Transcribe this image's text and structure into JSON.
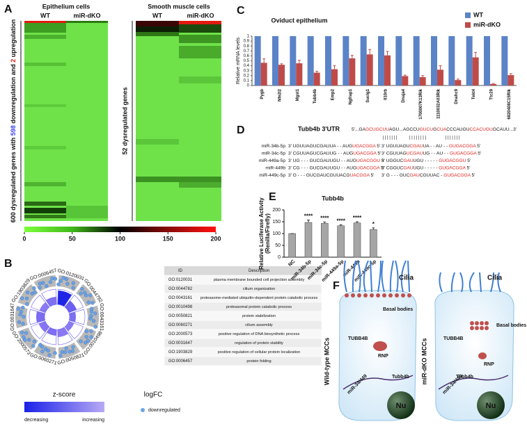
{
  "panel_labels": [
    "A",
    "B",
    "C",
    "D",
    "E",
    "F"
  ],
  "panel_a": {
    "left_title": "Epithelium cells",
    "right_title": "Smooth muscle cells",
    "columns": [
      "WT",
      "miR-dKO"
    ],
    "left_axis_label": [
      {
        "text": "600 dysregulated genes with "
      },
      {
        "text": "598",
        "color": "#3a3ff2"
      },
      {
        "text": " downregulation and "
      },
      {
        "text": "2",
        "color": "#e0201b"
      },
      {
        "text": " upregulation"
      }
    ],
    "right_axis_label": "52 dysregulated genes",
    "colorbar": {
      "lim": [
        0,
        200
      ],
      "ticks": [
        0,
        50,
        100,
        150,
        200
      ]
    }
  },
  "panel_b": {
    "go_labels": [
      "GO:0120031",
      "GO:0044782",
      "GO:0043161",
      "GO:0010498",
      "GO:0050821",
      "GO:0060271",
      "GO:2000573",
      "GO:0031647",
      "GO:1903829",
      "GO:0006457"
    ],
    "table": {
      "header": [
        "ID",
        "Description"
      ],
      "rows": [
        [
          "GO:0120031",
          "plasma membrane bounded cell projection assembly"
        ],
        [
          "GO:0044782",
          "cilium organization"
        ],
        [
          "GO:0043161",
          "proteasome-mediated ubiquitin-dependent protein catabolic process"
        ],
        [
          "GO:0010498",
          "proteasomal protein catabolic process"
        ],
        [
          "GO:0050821",
          "protein stabilization"
        ],
        [
          "GO:0060271",
          "cilium assembly"
        ],
        [
          "GO:2000573",
          "positive regulation of DNA biosynthetic process"
        ],
        [
          "GO:0031647",
          "regulation of protein stability"
        ],
        [
          "GO:1903829",
          "positive regulation of cellular protein localization"
        ],
        [
          "GO:0006457",
          "protein folding"
        ]
      ]
    },
    "zscore_title": "z-score",
    "zscore_labels": [
      "decreasing",
      "increasing"
    ],
    "logfc_title": "logFC",
    "logfc_label": "downregulated"
  },
  "panel_c": {
    "type": "bar",
    "title": "Oviduct epithelium",
    "ylabel": "Relative mRNA levels",
    "categories": [
      "Pygb",
      "Nfe2l2",
      "Mgst1",
      "Tubb4b",
      "Emp2",
      "Ngfrap1",
      "Suclg1",
      "Il10rb",
      "Dnaja4",
      "1700007K13Rik",
      "1110032A03Rik",
      "Dnahc9",
      "Tekt4",
      "Ttc29",
      "6820408C15Rik"
    ],
    "series": [
      {
        "name": "WT",
        "color": "#5b83c8",
        "values": [
          1,
          1,
          1,
          1,
          1,
          1,
          1,
          1,
          1,
          1,
          1,
          1,
          1,
          1,
          1
        ]
      },
      {
        "name": "miR-dKO",
        "color": "#bf4b48",
        "values": [
          0.46,
          0.42,
          0.45,
          0.26,
          0.33,
          0.55,
          0.63,
          0.61,
          0.19,
          0.17,
          0.32,
          0.11,
          0.57,
          0.03,
          0.21
        ],
        "errors": [
          0.08,
          0.02,
          0.06,
          0.03,
          0.07,
          0.06,
          0.1,
          0.08,
          0.02,
          0.03,
          0.08,
          0.02,
          0.1,
          0.01,
          0.03
        ]
      }
    ],
    "ylim": [
      0,
      1
    ],
    "yticks": [
      0,
      0.1,
      0.2,
      0.3,
      0.4,
      0.5,
      0.6,
      0.7,
      0.8,
      0.9,
      1
    ]
  },
  "panel_d": {
    "title": "Tubb4b 3'UTR",
    "utr": [
      {
        "text": "5'...GA"
      },
      {
        "text": "GCUGCUU",
        "color": "#e0201b"
      },
      {
        "text": "AGU...AGCCU"
      },
      {
        "text": "GUCU",
        "color": "#e0201b"
      },
      {
        "text": "G"
      },
      {
        "text": "CUA",
        "color": "#e0201b"
      },
      {
        "text": "CCCAUGU"
      },
      {
        "text": "CCACUGU",
        "color": "#e0201b"
      },
      {
        "text": "GCAUU...3'"
      }
    ],
    "pairing": [
      "| | | | | | |",
      "| | | |  | | | |",
      "| | | | | | |"
    ],
    "rows": [
      {
        "name": "miR-34b-5p",
        "left": [
          {
            "text": "3' UGUUAGUCGAUUA - - AUG"
          },
          {
            "text": "UGACGGA",
            "color": "#e0201b"
          },
          {
            "text": " 5'"
          }
        ],
        "right": [
          {
            "text": "3' UGUUAGU"
          },
          {
            "text": "CGAU",
            "color": "#e0201b"
          },
          {
            "text": "UA - - AU - - "
          },
          {
            "text": "GUGACGGA",
            "color": "#e0201b"
          },
          {
            "text": " 5'"
          }
        ]
      },
      {
        "name": "miR-34c-5p",
        "left": [
          {
            "text": "3' CGUUAGUCGAUUG - - AUG"
          },
          {
            "text": "UGACGGA",
            "color": "#e0201b"
          },
          {
            "text": " 5'"
          }
        ],
        "right": [
          {
            "text": "3' CGUUAG"
          },
          {
            "text": "UCGAU",
            "color": "#e0201b"
          },
          {
            "text": "UG - - AU - - "
          },
          {
            "text": "GUGACGGA",
            "color": "#e0201b"
          },
          {
            "text": " 5'"
          }
        ]
      },
      {
        "name": "miR-449a-5p",
        "left": [
          {
            "text": "3' UG - - - GUCGAUUGU - - AUG"
          },
          {
            "text": "UGACGGU",
            "color": "#e0201b"
          },
          {
            "text": " 5'"
          }
        ],
        "right": [
          {
            "text": "3' UGGUC"
          },
          {
            "text": "GAU",
            "color": "#e0201b"
          },
          {
            "text": "UGU - - - - - "
          },
          {
            "text": "GUGACGGU",
            "color": "#e0201b"
          },
          {
            "text": " 5'"
          }
        ]
      },
      {
        "name": "miR-449b",
        "left": [
          {
            "text": "3' CG - - - GUCGAUUGU - - AUG"
          },
          {
            "text": "UGACGGA",
            "color": "#e0201b"
          },
          {
            "text": " 5'"
          }
        ],
        "right": [
          {
            "text": "3' CGGUC"
          },
          {
            "text": "GAU",
            "color": "#e0201b"
          },
          {
            "text": "UGU - - - - - "
          },
          {
            "text": "GUGACGGA",
            "color": "#e0201b"
          },
          {
            "text": " 5'"
          }
        ]
      },
      {
        "name": "miR-449c-5p",
        "left": [
          {
            "text": "3' G - - - GUCGAUCGUUACG"
          },
          {
            "text": "UACGGA",
            "color": "#e0201b"
          },
          {
            "text": " 5'"
          }
        ],
        "right": [
          {
            "text": "3' G - - - GUC"
          },
          {
            "text": "GAU",
            "color": "#e0201b"
          },
          {
            "text": "CGUUAC - "
          },
          {
            "text": "GUGACGGA",
            "color": "#e0201b"
          },
          {
            "text": " 5'"
          }
        ]
      }
    ]
  },
  "panel_e": {
    "type": "bar",
    "title": "Tubb4b",
    "ylabel": [
      "Relative Luciferase Activity",
      "(Renilla/Firefly)"
    ],
    "categories": [
      "NC",
      "miR-34b-5p",
      "miR-34c-5p",
      "miR-449a-5p",
      "miR-449b",
      "miR-449c-5p"
    ],
    "values": [
      100,
      147,
      143,
      133,
      145,
      117
    ],
    "errors": [
      0,
      10,
      6,
      4,
      5,
      7
    ],
    "significance": [
      null,
      "****",
      "****",
      "****",
      "****",
      "*"
    ],
    "color": "#a6a6a6",
    "ylim": [
      0,
      200
    ],
    "yticks": [
      0,
      50,
      100,
      150,
      200
    ]
  },
  "panel_f": {
    "cells": [
      {
        "title": "Wild-type MCCs",
        "cilia": "Cilia",
        "basal": "Basal bodies",
        "protein": "TUBB4B",
        "rnp": "RNP",
        "mrna": "Tubb4b",
        "mirna": "miR-34/449",
        "nucleus": "Nu"
      },
      {
        "title": "miR-dKO MCCs",
        "cilia": "Cilia",
        "basal": "Basal bodies",
        "protein": "TUBB4B",
        "rnp": "RNP",
        "mrna": "Tubb4b",
        "mirna": "miR-34/449",
        "nucleus": "Nu"
      }
    ]
  }
}
